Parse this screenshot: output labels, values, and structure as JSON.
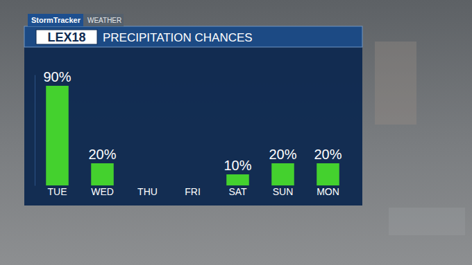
{
  "chart_data": {
    "type": "bar",
    "title": "PRECIPITATION CHANCES",
    "annotations": [
      "StormTracker",
      "WEATHER",
      "LEX18"
    ],
    "categories": [
      "TUE",
      "WED",
      "THU",
      "FRI",
      "SAT",
      "SUN",
      "MON"
    ],
    "values": [
      90,
      20,
      null,
      null,
      10,
      20,
      20
    ],
    "value_labels": [
      "90%",
      "20%",
      null,
      null,
      "10%",
      "20%",
      "20%"
    ],
    "color": "#44d12e",
    "ylim": [
      0,
      100
    ],
    "data_labels": true,
    "tick_labels": "x"
  }
}
